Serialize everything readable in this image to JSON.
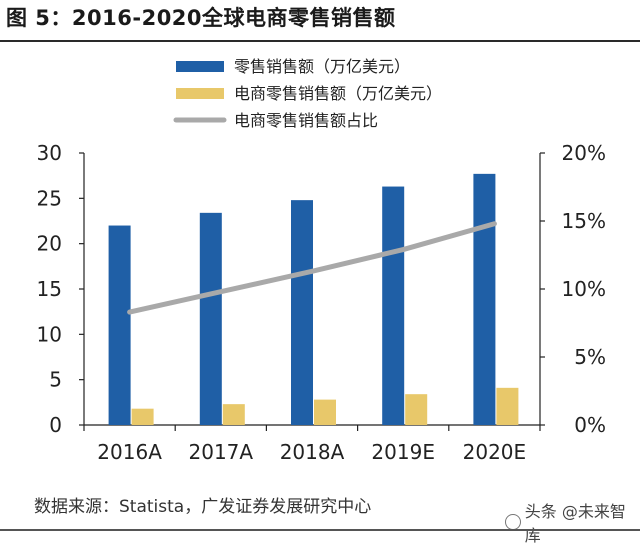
{
  "chart_data": {
    "type": "bar",
    "title": "图 5：2016-2020全球电商零售销售额",
    "categories": [
      "2016A",
      "2017A",
      "2018A",
      "2019E",
      "2020E"
    ],
    "series": [
      {
        "name": "零售销售额（万亿美元）",
        "kind": "bar",
        "axis": "left",
        "color": "#1f5fa6",
        "values": [
          22.0,
          23.4,
          24.8,
          26.3,
          27.7
        ]
      },
      {
        "name": "电商零售销售额（万亿美元）",
        "kind": "bar",
        "axis": "left",
        "color": "#e8c86a",
        "values": [
          1.8,
          2.3,
          2.8,
          3.4,
          4.1
        ]
      },
      {
        "name": "电商零售销售额占比",
        "kind": "line",
        "axis": "right",
        "color": "#a9a9a9",
        "values": [
          8.3,
          9.8,
          11.3,
          12.9,
          14.8
        ]
      }
    ],
    "left_axis": {
      "min": 0,
      "max": 30,
      "step": 5,
      "tick_labels": [
        "0",
        "5",
        "10",
        "15",
        "20",
        "25",
        "30"
      ]
    },
    "right_axis": {
      "min": 0,
      "max": 20,
      "step": 5,
      "unit": "%",
      "tick_labels": [
        "0%",
        "5%",
        "10%",
        "15%",
        "20%"
      ]
    },
    "grid": false,
    "legend_position": "top-center"
  },
  "source": "数据来源：Statista，广发证券发展研究中心",
  "watermark": "头条 @未来智库"
}
